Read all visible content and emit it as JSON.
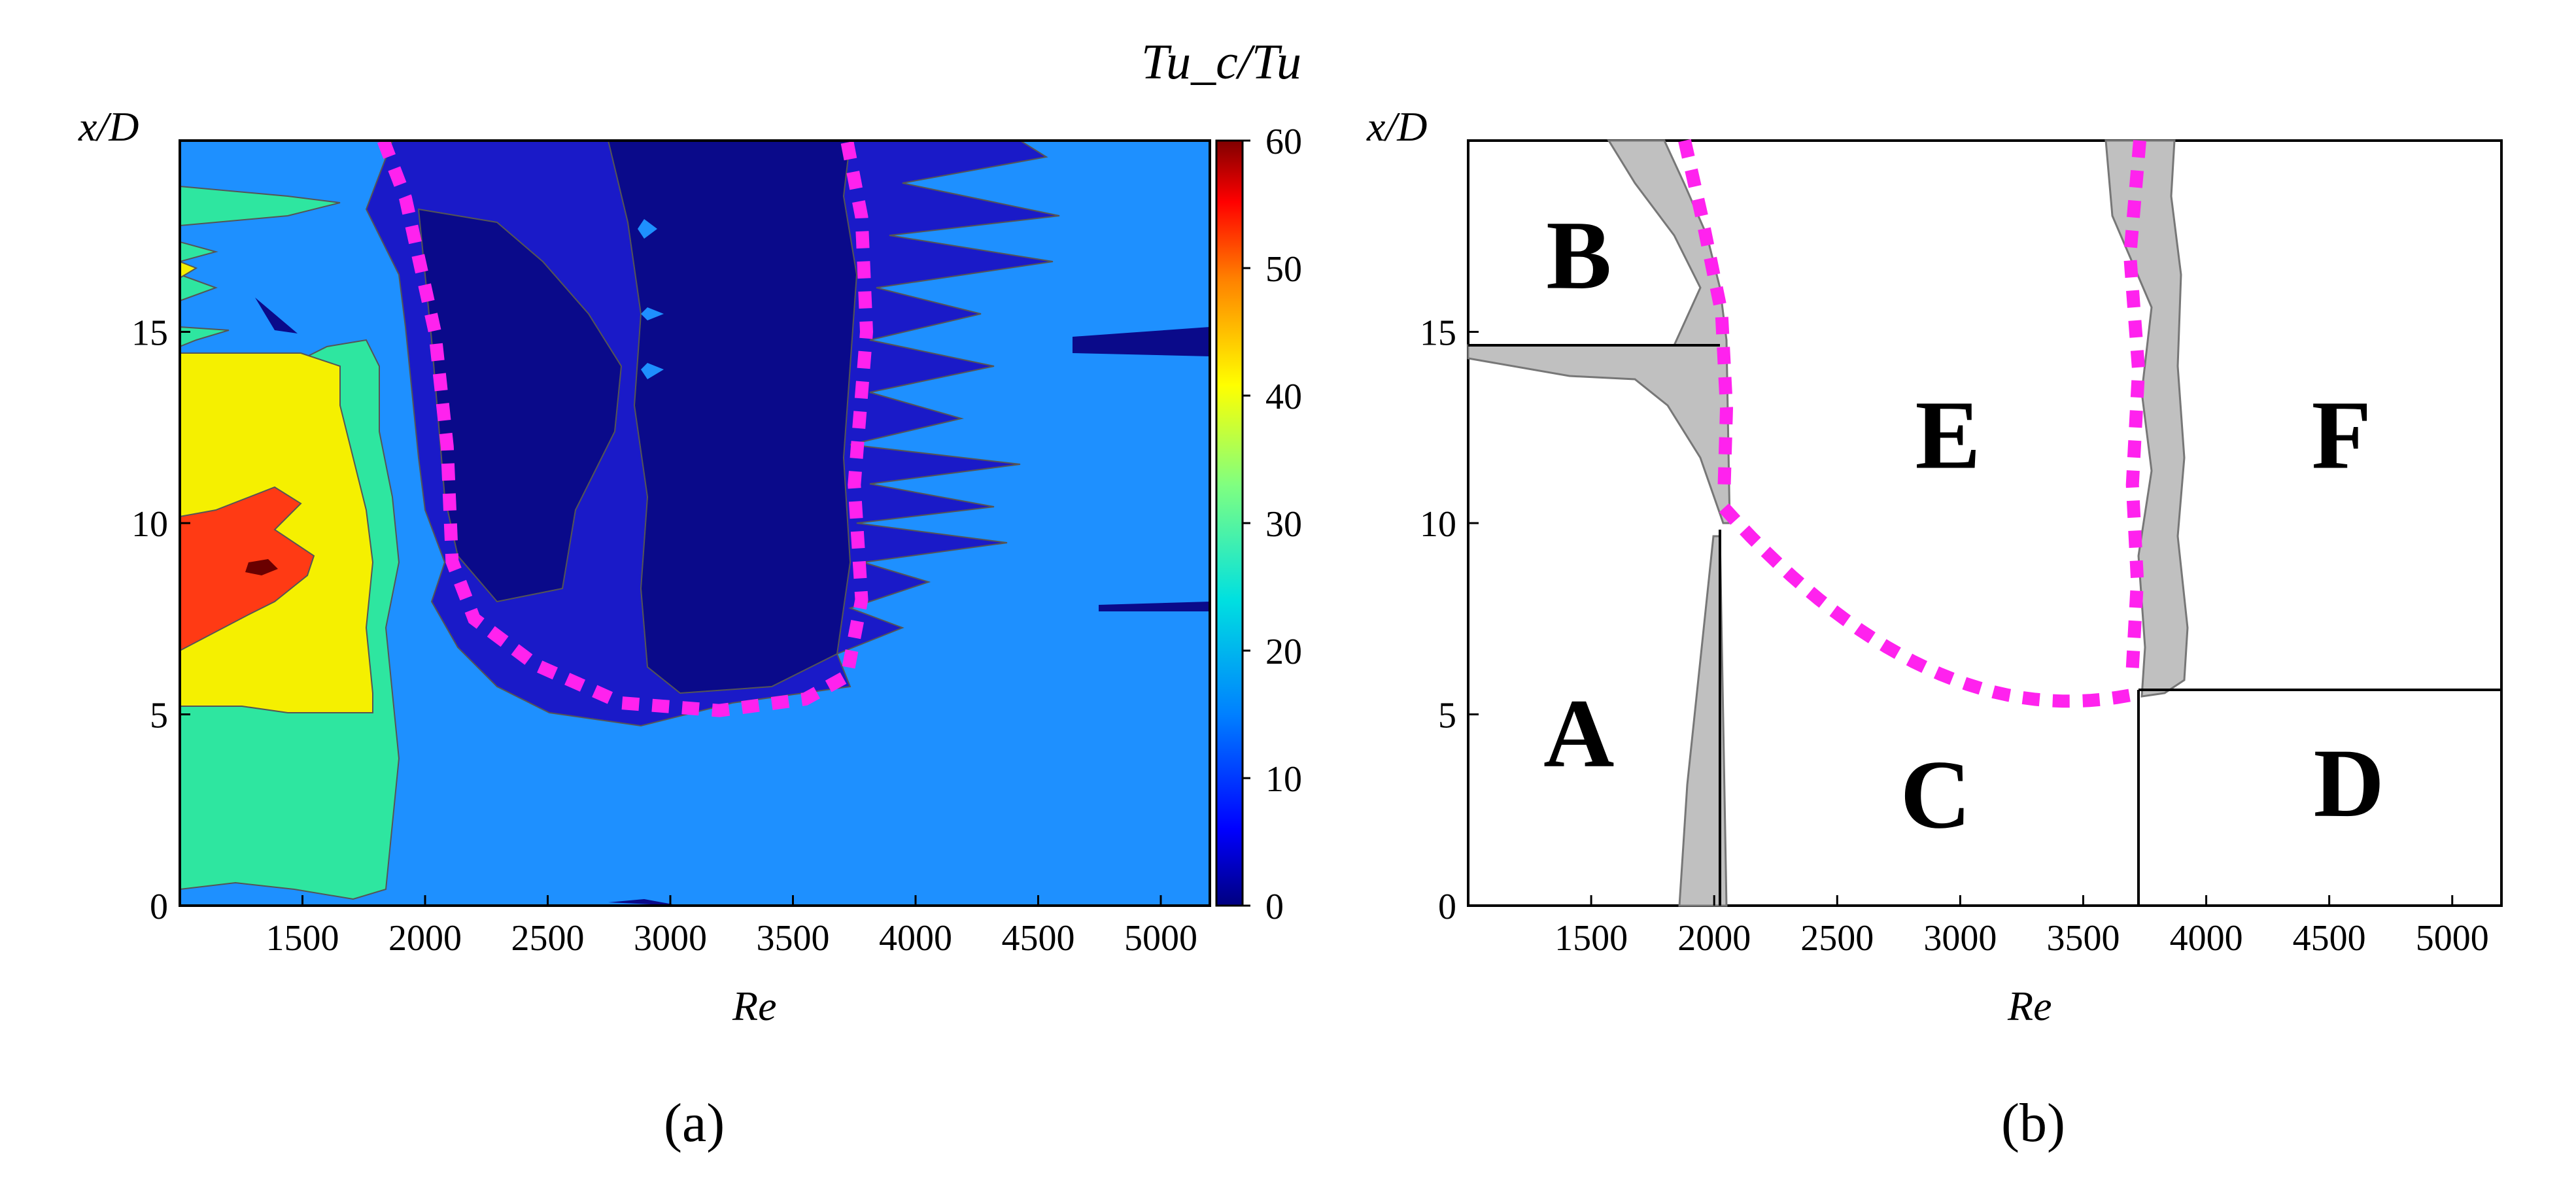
{
  "chart_data": [
    {
      "type": "heatmap",
      "panel_label": "(a)",
      "xlabel": "Re",
      "ylabel": "x/D",
      "xlim": [
        1000,
        5200
      ],
      "ylim": [
        0,
        20
      ],
      "x_ticks": [
        1500,
        2000,
        2500,
        3000,
        3500,
        4000,
        4500,
        5000
      ],
      "y_ticks": [
        0,
        5,
        10,
        15
      ],
      "colorbar": {
        "label": "Tu_c/Tu",
        "range": [
          0,
          60
        ],
        "ticks": [
          0,
          10,
          20,
          30,
          40,
          50,
          60
        ]
      },
      "colors": {
        "background_level": "#1e90ff",
        "low_band": "#1a1ac8",
        "lowest_band": "#0a0a8a",
        "green_band": "#2ee6a0",
        "yellow_band": "#f5f000",
        "red_band": "#ff3a14",
        "peak": "#6a0000",
        "dashed_boundary": "#ff22ee"
      },
      "annotations": [
        {
          "type": "dashed_curve",
          "description": "boundary",
          "points": [
            [
              1830,
              20
            ],
            [
              1920,
              18.5
            ],
            [
              2040,
              15
            ],
            [
              2090,
              12
            ],
            [
              2110,
              9
            ],
            [
              2200,
              7.5
            ],
            [
              2450,
              6.3
            ],
            [
              2800,
              5.3
            ],
            [
              3200,
              5.1
            ],
            [
              3550,
              5.4
            ],
            [
              3720,
              6
            ],
            [
              3780,
              8
            ],
            [
              3750,
              11
            ],
            [
              3800,
              15
            ],
            [
              3780,
              18
            ],
            [
              3720,
              20
            ]
          ]
        }
      ]
    },
    {
      "type": "regime_map",
      "panel_label": "(b)",
      "xlabel": "Re",
      "ylabel": "x/D",
      "xlim": [
        1000,
        5200
      ],
      "ylim": [
        0,
        20
      ],
      "x_ticks": [
        1500,
        2000,
        2500,
        3000,
        3500,
        4000,
        4500,
        5000
      ],
      "y_ticks": [
        0,
        5,
        10,
        15
      ],
      "regions": [
        {
          "label": "B",
          "x": 1450,
          "y": 17
        },
        {
          "label": "E",
          "x": 2950,
          "y": 12.3
        },
        {
          "label": "F",
          "x": 4550,
          "y": 12.3
        },
        {
          "label": "A",
          "x": 1450,
          "y": 4.5
        },
        {
          "label": "C",
          "x": 2900,
          "y": 2.9
        },
        {
          "label": "D",
          "x": 4580,
          "y": 3.2
        }
      ],
      "colors": {
        "transition_band": "#c0c0c0",
        "dashed_boundary": "#ff22ee"
      }
    }
  ]
}
